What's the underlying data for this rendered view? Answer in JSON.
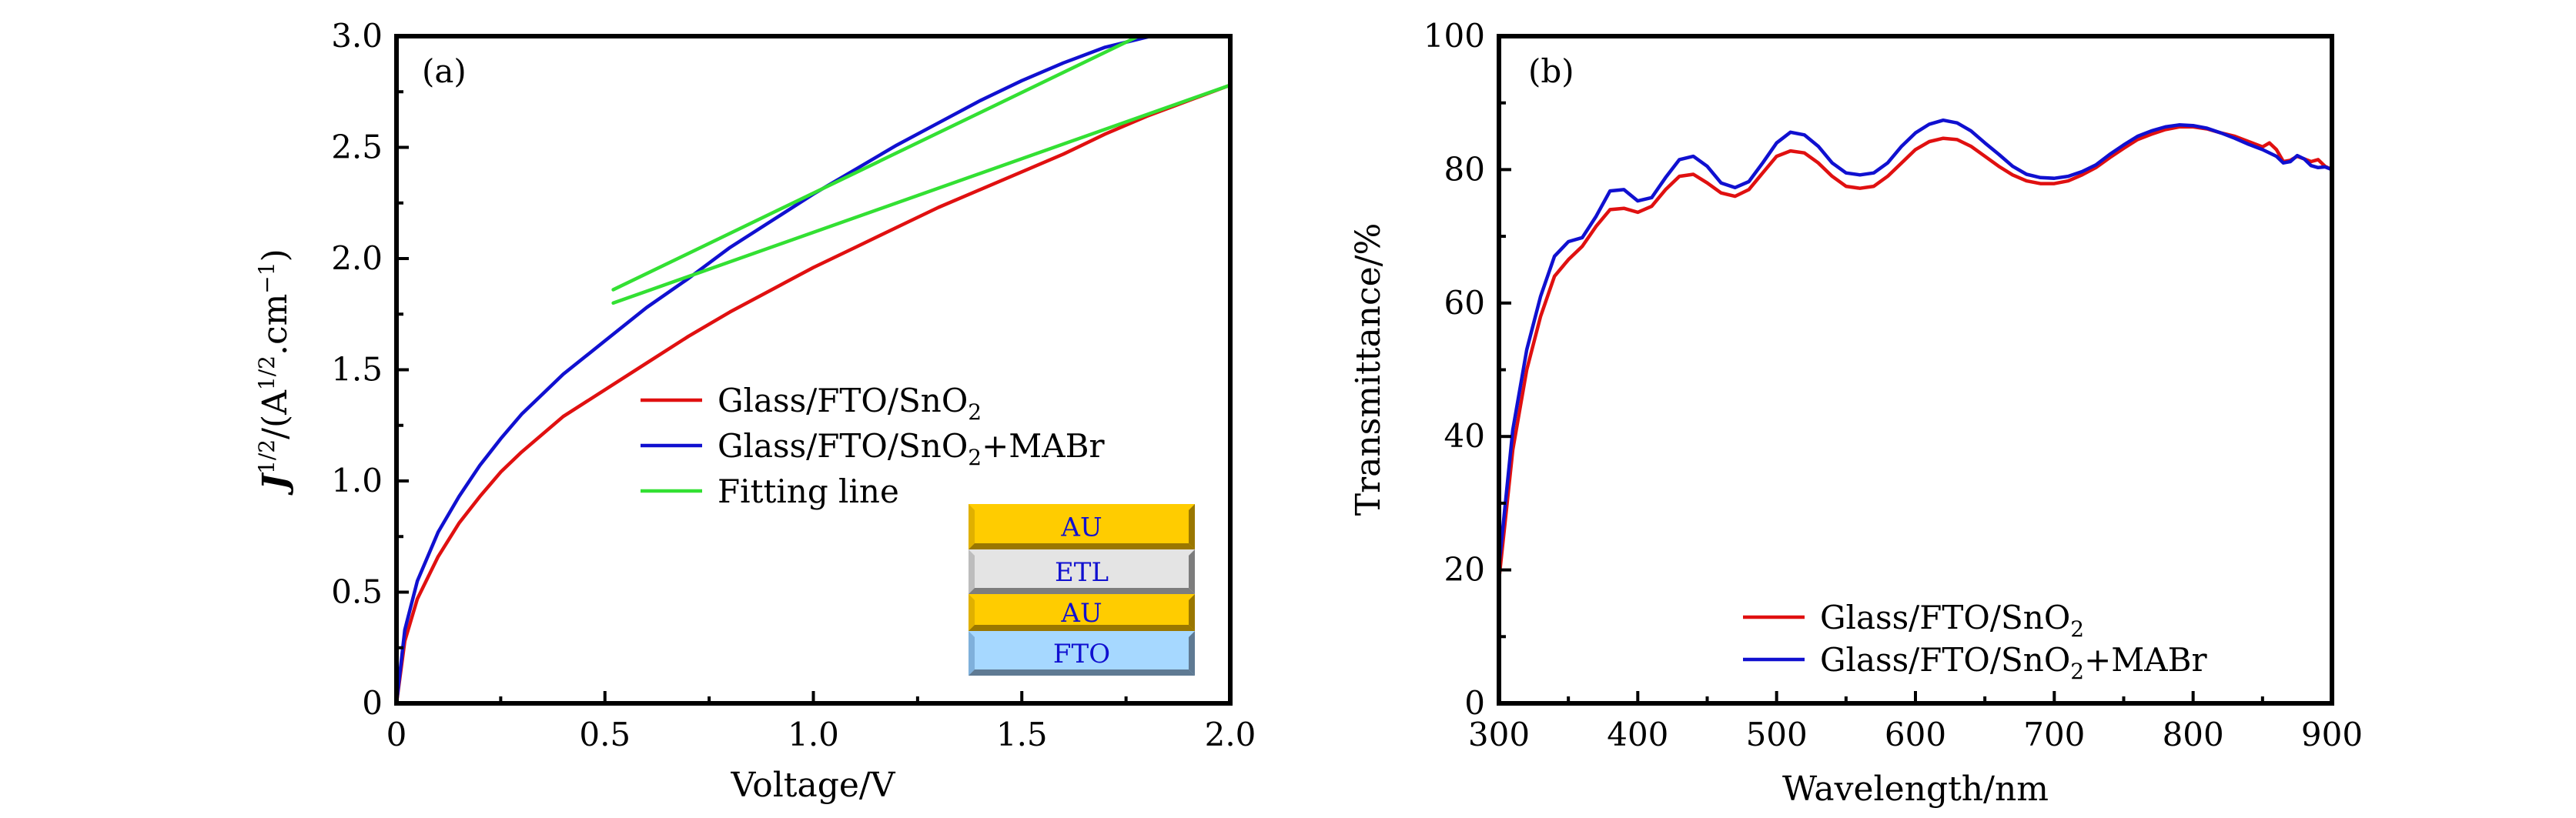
{
  "chart_data": [
    {
      "type": "line",
      "panel_label": "(a)",
      "title": "",
      "xlabel": "Voltage/V",
      "ylabel_parts": {
        "main": "J",
        "sup1": "1/2",
        "mid": "/(A",
        "sup2": "1/2",
        "mid2": ".cm",
        "sup3": "−1",
        "end": ")"
      },
      "ylabel": "J^1/2/(A^1/2.cm^-1)",
      "xlim": [
        0,
        2.0
      ],
      "ylim": [
        0,
        3.0
      ],
      "xticks": [
        0,
        0.5,
        1.0,
        1.5,
        2.0
      ],
      "xtick_labels": [
        "0",
        "0.5",
        "1.0",
        "1.5",
        "2.0"
      ],
      "xminor": [
        0.25,
        0.75,
        1.25,
        1.75
      ],
      "yticks": [
        0,
        0.5,
        1.0,
        1.5,
        2.0,
        2.5,
        3.0
      ],
      "ytick_labels": [
        "0",
        "0.5",
        "1.0",
        "1.5",
        "2.0",
        "2.5",
        "3.0"
      ],
      "yminor": [
        0.25,
        0.75,
        1.25,
        1.75,
        2.25,
        2.75
      ],
      "grid": false,
      "legend_position": "center-right",
      "series": [
        {
          "name": "Glass/FTO/SnO2",
          "label_main": "Glass/FTO/SnO",
          "label_sub": "2",
          "label_tail": "",
          "color": "#e01010",
          "x": [
            0,
            0.02,
            0.05,
            0.1,
            0.15,
            0.2,
            0.25,
            0.3,
            0.4,
            0.5,
            0.6,
            0.7,
            0.8,
            0.9,
            1.0,
            1.1,
            1.2,
            1.3,
            1.4,
            1.5,
            1.6,
            1.7,
            1.8,
            1.9,
            2.0
          ],
          "y": [
            0,
            0.28,
            0.47,
            0.66,
            0.81,
            0.93,
            1.04,
            1.13,
            1.29,
            1.41,
            1.53,
            1.65,
            1.76,
            1.86,
            1.96,
            2.05,
            2.14,
            2.23,
            2.31,
            2.39,
            2.47,
            2.56,
            2.64,
            2.71,
            2.78
          ]
        },
        {
          "name": "Glass/FTO/SnO2+MABr",
          "label_main": "Glass/FTO/SnO",
          "label_sub": "2",
          "label_tail": "+MABr",
          "color": "#1010d0",
          "x": [
            0,
            0.02,
            0.05,
            0.1,
            0.15,
            0.2,
            0.25,
            0.3,
            0.4,
            0.5,
            0.6,
            0.7,
            0.8,
            0.9,
            1.0,
            1.1,
            1.2,
            1.3,
            1.4,
            1.5,
            1.6,
            1.7,
            1.81
          ],
          "y": [
            0,
            0.33,
            0.55,
            0.77,
            0.93,
            1.07,
            1.19,
            1.3,
            1.48,
            1.63,
            1.78,
            1.91,
            2.05,
            2.17,
            2.29,
            2.4,
            2.51,
            2.61,
            2.71,
            2.8,
            2.88,
            2.95,
            3.0
          ]
        },
        {
          "name": "Fitting line",
          "label_main": "Fitting line",
          "label_sub": "",
          "label_tail": "",
          "color": "#33e033",
          "segments": [
            {
              "x": [
                0.52,
                1.78
              ],
              "y": [
                1.86,
                3.0
              ]
            },
            {
              "x": [
                0.52,
                2.0
              ],
              "y": [
                1.8,
                2.78
              ]
            }
          ]
        }
      ],
      "inset": {
        "description": "device structure schematic",
        "layers": [
          {
            "label": "AU",
            "color": "#ffcc00"
          },
          {
            "label": "ETL",
            "color": "#e4e4e4"
          },
          {
            "label": "AU",
            "color": "#ffcc00"
          },
          {
            "label": "FTO",
            "color": "#a6d8ff"
          }
        ]
      }
    },
    {
      "type": "line",
      "panel_label": "(b)",
      "title": "",
      "xlabel": "Wavelength/nm",
      "ylabel": "Transmittance/%",
      "xlim": [
        300,
        900
      ],
      "ylim": [
        0,
        100
      ],
      "xticks": [
        300,
        400,
        500,
        600,
        700,
        800,
        900
      ],
      "xtick_labels": [
        "300",
        "400",
        "500",
        "600",
        "700",
        "800",
        "900"
      ],
      "xminor": [
        350,
        450,
        550,
        650,
        750,
        850
      ],
      "yticks": [
        0,
        20,
        40,
        60,
        80,
        100
      ],
      "ytick_labels": [
        "0",
        "20",
        "40",
        "60",
        "80",
        "100"
      ],
      "yminor": [
        10,
        30,
        50,
        70,
        90
      ],
      "grid": false,
      "legend_position": "bottom-center",
      "series": [
        {
          "name": "Glass/FTO/SnO2",
          "label_main": "Glass/FTO/SnO",
          "label_sub": "2",
          "label_tail": "",
          "color": "#e01010",
          "x": [
            300,
            310,
            320,
            330,
            340,
            350,
            360,
            370,
            380,
            390,
            400,
            410,
            420,
            430,
            440,
            450,
            460,
            470,
            480,
            490,
            500,
            510,
            520,
            530,
            540,
            550,
            560,
            570,
            580,
            590,
            600,
            610,
            620,
            630,
            640,
            650,
            660,
            670,
            680,
            690,
            700,
            710,
            720,
            730,
            740,
            750,
            760,
            770,
            780,
            790,
            800,
            810,
            820,
            830,
            840,
            850,
            855,
            860,
            865,
            870,
            875,
            880,
            885,
            890,
            895,
            900
          ],
          "y": [
            18.5,
            38,
            50,
            58,
            64,
            66.5,
            68.5,
            71.5,
            74,
            74.2,
            73.6,
            74.5,
            77,
            79,
            79.3,
            78,
            76.5,
            76,
            77,
            79.5,
            82,
            82.8,
            82.5,
            81,
            79,
            77.5,
            77.2,
            77.5,
            79,
            81,
            83,
            84.2,
            84.7,
            84.5,
            83.5,
            82,
            80.5,
            79.2,
            78.3,
            77.9,
            77.9,
            78.3,
            79.2,
            80.3,
            81.8,
            83.2,
            84.5,
            85.3,
            86,
            86.4,
            86.4,
            86.1,
            85.5,
            85,
            84.2,
            83.4,
            84,
            83,
            81.2,
            81.4,
            82,
            81.6,
            81.2,
            81.5,
            80.5,
            80
          ]
        },
        {
          "name": "Glass/FTO/SnO2+MABr",
          "label_main": "Glass/FTO/SnO",
          "label_sub": "2",
          "label_tail": "+MABr",
          "color": "#1010d0",
          "x": [
            300,
            310,
            320,
            330,
            340,
            350,
            360,
            370,
            380,
            390,
            400,
            410,
            420,
            430,
            440,
            450,
            460,
            470,
            480,
            490,
            500,
            510,
            520,
            530,
            540,
            550,
            560,
            570,
            580,
            590,
            600,
            610,
            620,
            630,
            640,
            650,
            660,
            670,
            680,
            690,
            700,
            710,
            720,
            730,
            740,
            750,
            760,
            770,
            780,
            790,
            800,
            810,
            820,
            830,
            840,
            850,
            860,
            865,
            870,
            875,
            880,
            885,
            890,
            895,
            900
          ],
          "y": [
            20.5,
            41,
            53,
            61,
            67,
            69.2,
            69.8,
            73,
            76.8,
            77,
            75.3,
            75.8,
            78.8,
            81.5,
            82,
            80.5,
            78,
            77.3,
            78.2,
            81,
            84,
            85.6,
            85.2,
            83.5,
            81,
            79.5,
            79.2,
            79.5,
            81,
            83.5,
            85.5,
            86.8,
            87.4,
            87,
            85.8,
            84,
            82.3,
            80.5,
            79.3,
            78.8,
            78.7,
            79,
            79.7,
            80.7,
            82.3,
            83.7,
            85,
            85.8,
            86.4,
            86.7,
            86.6,
            86.2,
            85.5,
            84.7,
            83.8,
            83,
            82,
            81,
            81.2,
            82.1,
            81.6,
            80.6,
            80.3,
            80.4,
            80
          ]
        }
      ]
    }
  ]
}
